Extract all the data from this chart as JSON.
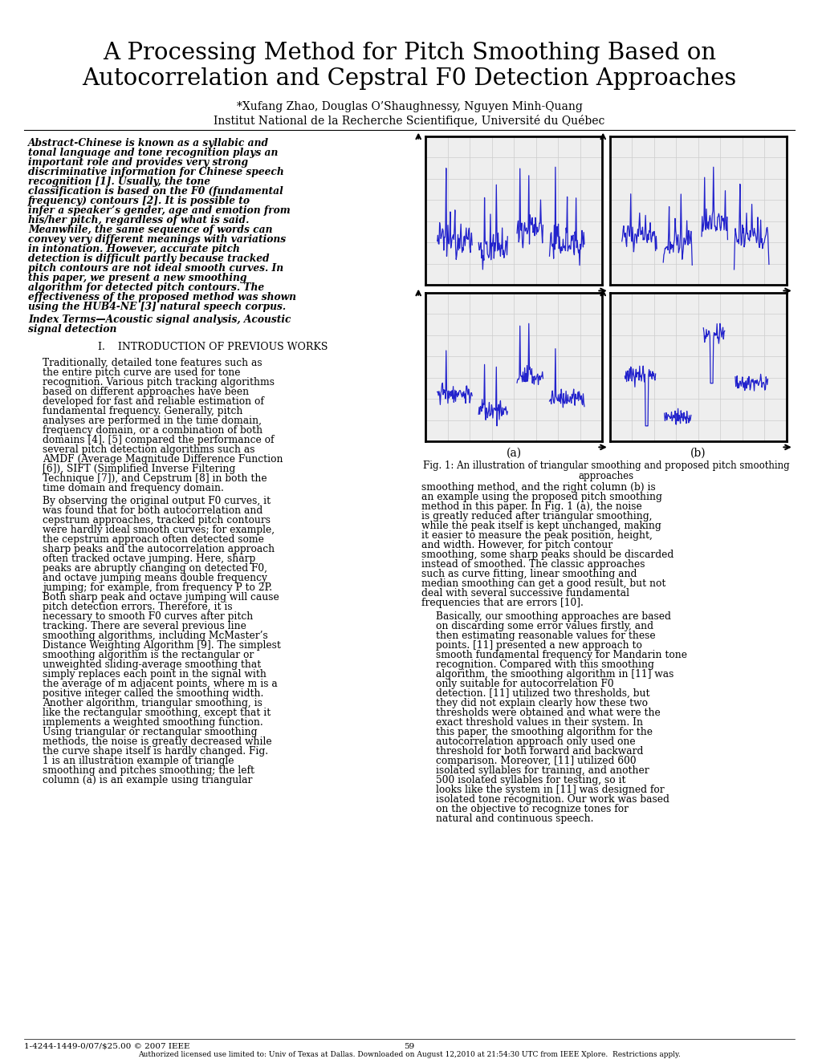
{
  "title_line1": "A Processing Method for Pitch Smoothing Based on",
  "title_line2": "Autocorrelation and Cepstral F0 Detection Approaches",
  "authors": "*Xufang Zhao, Douglas O’Shaughnessy, Nguyen Minh-Quang",
  "affiliation": "Institut National de la Recherche Scientifique, Université du Québec",
  "abstract_full": "Abstract-Chinese is known as a syllabic and tonal language and tone recognition plays an important role and provides very strong discriminative information for Chinese speech recognition [1]. Usually, the tone classification is based on the F0 (fundamental frequency) contours [2]. It is possible to infer a speaker’s gender, age and emotion from his/her pitch, regardless of what is said. Meanwhile, the same sequence of words can convey very different meanings with variations in intonation. However, accurate pitch detection is difficult partly because tracked pitch contours are not ideal smooth curves. In this paper, we present a new smoothing algorithm for detected pitch contours. The effectiveness of the proposed method was shown using the HUB4-NE [3] natural speech corpus.",
  "index_terms": "Index Terms—Acoustic signal analysis, Acoustic signal detection",
  "section1_title": "I.    INTRODUCTION OF PREVIOUS WORKS",
  "section1_para1": "Traditionally, detailed tone features such as the entire pitch curve are used for tone recognition. Various pitch tracking algorithms based on different approaches have been developed for fast and reliable estimation of fundamental frequency. Generally, pitch analyses are performed in the time domain, frequency domain, or a combination of both domains [4]. [5] compared the performance of several pitch detection algorithms such as AMDF (Average Magnitude Difference Function [6]), SIFT (Simplified Inverse Filtering Technique [7]), and Cepstrum [8] in both the time domain and frequency domain.",
  "section1_para2": "By observing the original output F0 curves, it was found that for both autocorrelation and cepstrum approaches, tracked pitch contours were hardly ideal smooth curves; for example, the cepstrum approach often detected some sharp peaks and the autocorrelation approach often tracked octave jumping. Here, sharp peaks are abruptly changing on detected F0, and octave jumping means double frequency jumping; for example, from frequency P to 2P. Both sharp peak and octave jumping will cause pitch detection errors. Therefore, it is necessary to smooth F0 curves after pitch tracking. There are several previous line smoothing algorithms, including McMaster’s Distance Weighting Algorithm [9]. The simplest smoothing algorithm is the rectangular or unweighted sliding-average smoothing that simply replaces each point in the signal with the average of m adjacent points, where m is a positive integer called the smoothing width. Another algorithm, triangular smoothing, is like the rectangular smoothing, except that it implements a weighted smoothing function. Using triangular or rectangular smoothing methods, the noise is greatly decreased while the curve shape itself is hardly changed. Fig. 1 is an illustration example of triangle smoothing and pitches smoothing; the left column (a) is an example using triangular",
  "right_col_para1": "smoothing method, and the right column (b) is an example using the proposed pitch smoothing method in this paper. In Fig. 1 (a), the noise is greatly reduced after triangular smoothing, while the peak itself is kept unchanged, making it easier to measure the peak position, height, and width. However, for pitch contour smoothing, some sharp peaks should be discarded instead of smoothed. The classic approaches such as curve fitting, linear smoothing and median smoothing can get a good result, but not deal with several successive fundamental frequencies that are errors [10].",
  "right_col_para2": "Basically, our smoothing approaches are based on discarding some error values firstly, and then estimating reasonable values for these points. [11] presented a new approach to smooth fundamental frequency for Mandarin tone recognition. Compared with this smoothing algorithm, the smoothing algorithm in [11] was only suitable for autocorrelation F0 detection. [11] utilized two thresholds, but they did not explain clearly how these two thresholds were obtained and what were the exact threshold values in their system. In this paper, the smoothing algorithm for the autocorrelation approach only used one threshold for both forward and backward comparison. Moreover, [11] utilized 600 isolated syllables for training, and another 500 isolated syllables for testing, so it looks like the system in [11] was designed for isolated tone recognition. Our work was based on the objective to recognize tones for natural and continuous speech.",
  "fig_caption_line1": "Fig. 1: An illustration of triangular smoothing and proposed pitch smoothing",
  "fig_caption_line2": "approaches",
  "fig_label_a": "(a)",
  "fig_label_b": "(b)",
  "footer_left": "1-4244-1449-0/07/$25.00 © 2007 IEEE",
  "footer_center": "59",
  "footer_bottom": "Authorized licensed use limited to: Univ of Texas at Dallas. Downloaded on August 12,2010 at 21:54:30 UTC from IEEE Xplore.  Restrictions apply.",
  "bg_color": "#ffffff",
  "text_color": "#000000",
  "plot_line_color": "#2222cc",
  "plot_bg_color": "#eeeeee",
  "grid_color": "#cccccc"
}
